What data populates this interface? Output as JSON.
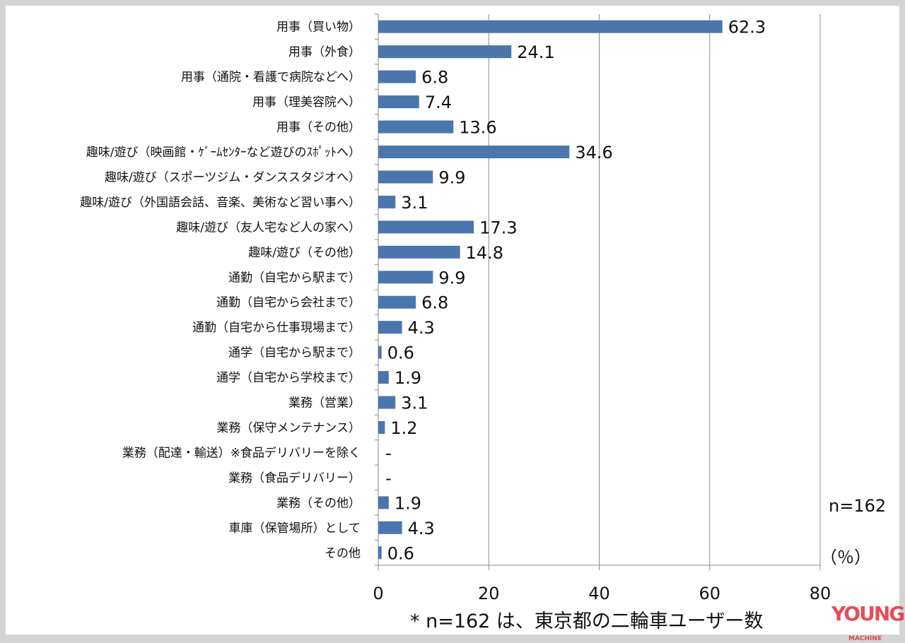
{
  "chart_data": {
    "type": "bar",
    "orientation": "horizontal",
    "categories": [
      "用事（買い物）",
      "用事（外食）",
      "用事（通院・看護で病院などへ）",
      "用事（理美容院へ）",
      "用事（その他）",
      "趣味/遊び（映画館・ｹﾞｰﾑｾﾝﾀｰなど遊びのｽﾎﾟｯﾄへ）",
      "趣味/遊び（スポーツジム・ダンススタジオへ）",
      "趣味/遊び（外国語会話、音楽、美術など習い事へ）",
      "趣味/遊び（友人宅など人の家へ）",
      "趣味/遊び（その他）",
      "通勤（自宅から駅まで）",
      "通勤（自宅から会社まで）",
      "通勤（自宅から仕事現場まで）",
      "通学（自宅から駅まで）",
      "通学（自宅から学校まで）",
      "業務（営業）",
      "業務（保守メンテナンス）",
      "業務（配達・輸送）※食品デリバリーを除く",
      "業務（食品デリバリー）",
      "業務（その他）",
      "車庫（保管場所）として",
      "その他"
    ],
    "values": [
      62.3,
      24.1,
      6.8,
      7.4,
      13.6,
      34.6,
      9.9,
      3.1,
      17.3,
      14.8,
      9.9,
      6.8,
      4.3,
      0.6,
      1.9,
      3.1,
      1.2,
      null,
      null,
      1.9,
      4.3,
      0.6
    ],
    "value_labels": [
      "62.3",
      "24.1",
      "6.8",
      "7.4",
      "13.6",
      "34.6",
      "9.9",
      "3.1",
      "17.3",
      "14.8",
      "9.9",
      "6.8",
      "4.3",
      "0.6",
      "1.9",
      "3.1",
      "1.2",
      "-",
      "-",
      "1.9",
      "4.3",
      "0.6"
    ],
    "xlim": [
      0,
      80
    ],
    "xticks": [
      "0",
      "20",
      "40",
      "60",
      "80"
    ],
    "grid": true,
    "sample_note": "n=162",
    "unit_label": "（％）",
    "footnote": "* n=162 は、東京都の二輪車ユーザー数",
    "bar_color": "#4a76ad",
    "watermark": "YOUNG MACHINE"
  }
}
